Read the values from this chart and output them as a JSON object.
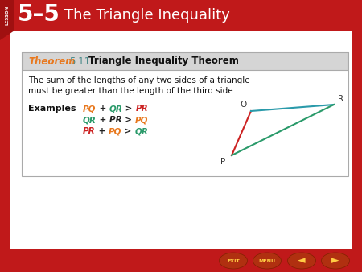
{
  "header_bg": "#c0191a",
  "page_bg": "#c0191a",
  "content_bg": "#ffffff",
  "theorem_header_bg": "#d8d8d8",
  "theorem_label_color": "#e8781e",
  "theorem_number_color": "#4a8a8a",
  "theorem_title_color": "#222222",
  "theorem_label": "Theorem",
  "theorem_number": "5.11",
  "theorem_title": "Triangle Inequality Theorem",
  "theorem_body_line1": "The sum of the lengths of any two sides of a triangle",
  "theorem_body_line2": "must be greater than the length of the third side.",
  "examples_label": "Examples",
  "line1_parts": [
    "PQ",
    " + ",
    "QR",
    " > ",
    "PR"
  ],
  "line1_colors": [
    "#e8781e",
    "#222222",
    "#2a9a6a",
    "#222222",
    "#cc2222"
  ],
  "line2_parts": [
    "QR",
    " + PR > ",
    "PQ"
  ],
  "line2_colors": [
    "#2a9a6a",
    "#222222",
    "#e8781e"
  ],
  "line3_parts": [
    "PR",
    " + ",
    "PQ",
    " > ",
    "QR"
  ],
  "line3_colors": [
    "#cc2222",
    "#222222",
    "#e8781e",
    "#222222",
    "#2a9a6a"
  ],
  "line_PO_color": "#cc2222",
  "line_OR_color": "#2a9aaa",
  "line_PR_color": "#2a9a6a",
  "title_number": "5–5",
  "title_text": "The Triangle Inequality",
  "lesson_label": "LESSON"
}
